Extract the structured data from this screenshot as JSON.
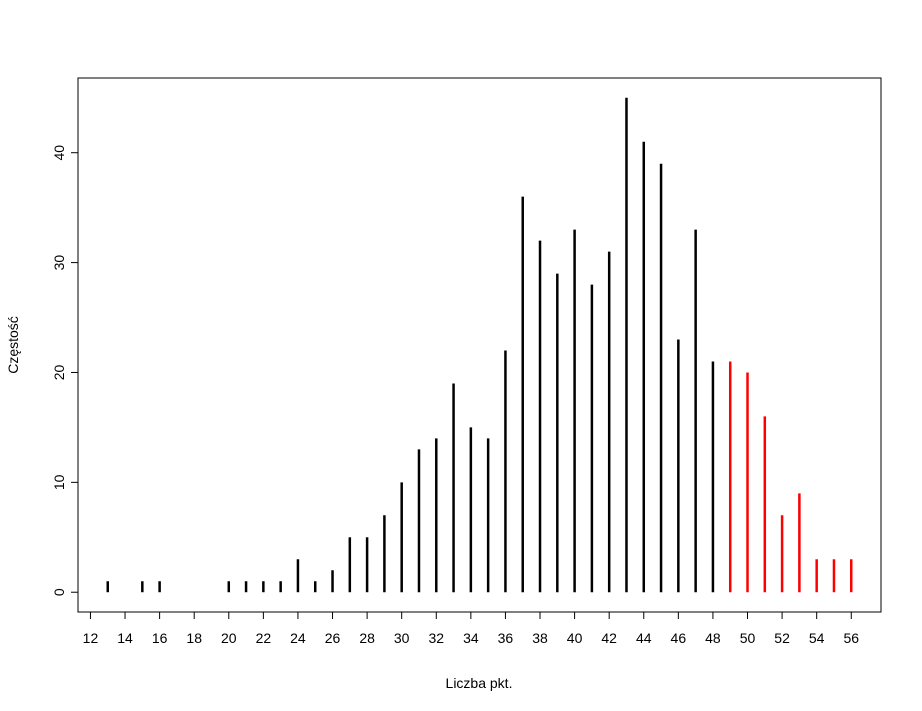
{
  "chart_data": {
    "type": "needle",
    "xlabel": "Liczba pkt.",
    "ylabel": "Częstość",
    "series": [
      {
        "color": "#000000",
        "x": [
          13,
          15,
          16,
          20,
          21,
          22,
          23,
          24,
          25,
          26,
          27,
          28,
          29,
          30,
          31,
          32,
          33,
          34,
          35,
          36,
          37,
          38,
          39,
          40,
          41,
          42,
          43,
          44,
          45,
          46,
          47,
          48
        ],
        "values": [
          1,
          1,
          1,
          1,
          1,
          1,
          1,
          3,
          1,
          2,
          5,
          5,
          7,
          10,
          13,
          14,
          19,
          15,
          14,
          22,
          36,
          32,
          29,
          33,
          28,
          31,
          45,
          41,
          39,
          23,
          33,
          21
        ]
      },
      {
        "color": "#ff0000",
        "x": [
          49,
          50,
          51,
          52,
          53,
          54,
          55,
          56
        ],
        "values": [
          21,
          20,
          16,
          7,
          9,
          3,
          3,
          3
        ]
      }
    ],
    "xlim": [
      11.28,
      57.72
    ],
    "ylim": [
      -1.8,
      46.8
    ],
    "xticks": [
      12,
      14,
      16,
      18,
      20,
      22,
      24,
      26,
      28,
      30,
      32,
      34,
      36,
      38,
      40,
      42,
      44,
      46,
      48,
      50,
      52,
      54,
      56
    ],
    "yticks": [
      0,
      10,
      20,
      30,
      40
    ]
  }
}
